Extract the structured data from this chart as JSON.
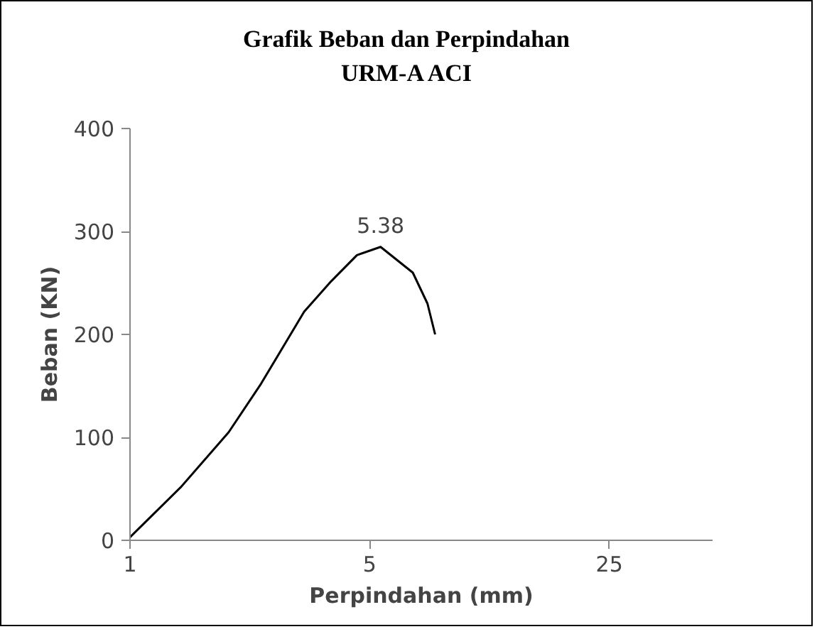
{
  "chart_data": {
    "type": "line",
    "title": "Grafik Beban dan Perpindahan\nURM-A ACI",
    "xlabel": "Perpindahan (mm)",
    "ylabel": "Beban (KN)",
    "log": "x",
    "xlim": [
      1,
      50
    ],
    "xticks": [
      1,
      5,
      25
    ],
    "ylim": [
      0,
      400
    ],
    "yticks": [
      0,
      100,
      200,
      300,
      400
    ],
    "grid": false,
    "marker": "none",
    "line_style": "solid",
    "series": [
      {
        "color": "#000000",
        "x": [
          1,
          1.41,
          1.94,
          2.41,
          3.22,
          3.87,
          4.59,
          5.38,
          6.68,
          7.37,
          7.76
        ],
        "values": [
          3,
          52,
          105,
          152,
          222,
          252,
          277,
          285,
          260,
          230,
          200
        ]
      }
    ],
    "annotations": [
      {
        "text": "5.38",
        "x": 5.38,
        "y": 285
      }
    ]
  }
}
